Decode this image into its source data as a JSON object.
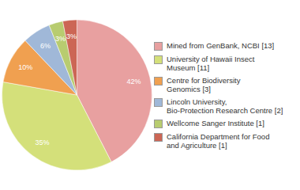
{
  "chart_data": {
    "type": "pie",
    "categories": [
      "Mined from GenBank, NCBI [13]",
      "University of Hawaii Insect\nMuseum [11]",
      "Centre for Biodiversity\nGenomics [3]",
      "Lincoln University,\nBio-Protection Research Centre [2]",
      "Wellcome Sanger Institute [1]",
      "California Department for Food\nand Agriculture [1]"
    ],
    "values": [
      42,
      35,
      10,
      6,
      3,
      3
    ],
    "value_labels": [
      "42%",
      "35%",
      "10%",
      "6%",
      "3%",
      "3%"
    ],
    "colors": [
      "#e8a0a0",
      "#d4e07a",
      "#f0a050",
      "#a0b8d8",
      "#b8cc70",
      "#cc6655"
    ],
    "data_labels": true,
    "legend": "right"
  }
}
